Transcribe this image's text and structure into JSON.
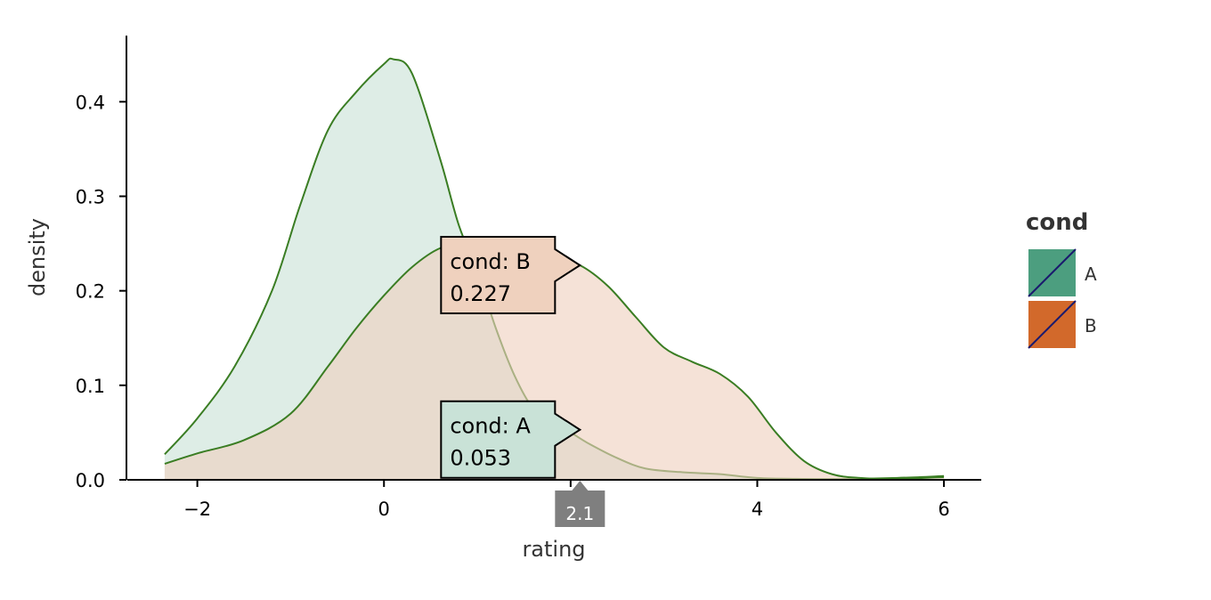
{
  "chart_data": {
    "type": "area",
    "xlabel": "rating",
    "ylabel": "density",
    "xlim": [
      -2.75,
      6.4
    ],
    "ylim": [
      0,
      0.47
    ],
    "x_ticks": [
      -2,
      0,
      2,
      4,
      6
    ],
    "x_tick_labels": [
      "−2",
      "0",
      "",
      "4",
      "6"
    ],
    "y_ticks": [
      0.0,
      0.1,
      0.2,
      0.3,
      0.4
    ],
    "y_tick_labels": [
      "0.0",
      "0.1",
      "0.2",
      "0.3",
      "0.4"
    ],
    "grid": false,
    "legend": {
      "title": "cond",
      "placement": "right",
      "entries": [
        {
          "label": "A",
          "color": "#4c9e7f"
        },
        {
          "label": "B",
          "color": "#d2692b"
        }
      ]
    },
    "series": [
      {
        "name": "A",
        "fill": "#c9e2d7",
        "x": [
          -2.35,
          -2.0,
          -1.6,
          -1.2,
          -0.9,
          -0.6,
          -0.3,
          0.0,
          0.1,
          0.3,
          0.6,
          0.8,
          1.0,
          1.2,
          1.4,
          1.6,
          1.8,
          2.0,
          2.2,
          2.5,
          2.8,
          3.2,
          3.6,
          4.0,
          4.5,
          5.0,
          5.5,
          6.0
        ],
        "y": [
          0.027,
          0.065,
          0.12,
          0.2,
          0.29,
          0.37,
          0.41,
          0.44,
          0.445,
          0.43,
          0.34,
          0.27,
          0.22,
          0.16,
          0.11,
          0.075,
          0.06,
          0.05,
          0.038,
          0.023,
          0.012,
          0.008,
          0.006,
          0.002,
          0.001,
          0.001,
          0.002,
          0.004
        ]
      },
      {
        "name": "B",
        "fill": "#efd1be",
        "x": [
          -2.35,
          -2.0,
          -1.5,
          -1.0,
          -0.6,
          -0.3,
          0.0,
          0.3,
          0.6,
          0.9,
          1.2,
          1.5,
          1.8,
          2.1,
          2.4,
          2.7,
          3.0,
          3.3,
          3.6,
          3.9,
          4.2,
          4.5,
          4.8,
          5.1,
          5.5,
          6.0
        ],
        "y": [
          0.017,
          0.028,
          0.042,
          0.07,
          0.12,
          0.16,
          0.195,
          0.225,
          0.245,
          0.25,
          0.248,
          0.243,
          0.235,
          0.227,
          0.205,
          0.172,
          0.14,
          0.125,
          0.112,
          0.088,
          0.05,
          0.02,
          0.006,
          0.002,
          0.001,
          0.003
        ]
      }
    ],
    "tooltips": [
      {
        "label": "cond: B",
        "value": "0.227",
        "series": "B",
        "x": 2.1,
        "y": 0.227
      },
      {
        "label": "cond: A",
        "value": "0.053",
        "series": "A",
        "x": 2.1,
        "y": 0.053
      }
    ],
    "x_hover": {
      "x": 2.1,
      "label": "2.1"
    }
  }
}
